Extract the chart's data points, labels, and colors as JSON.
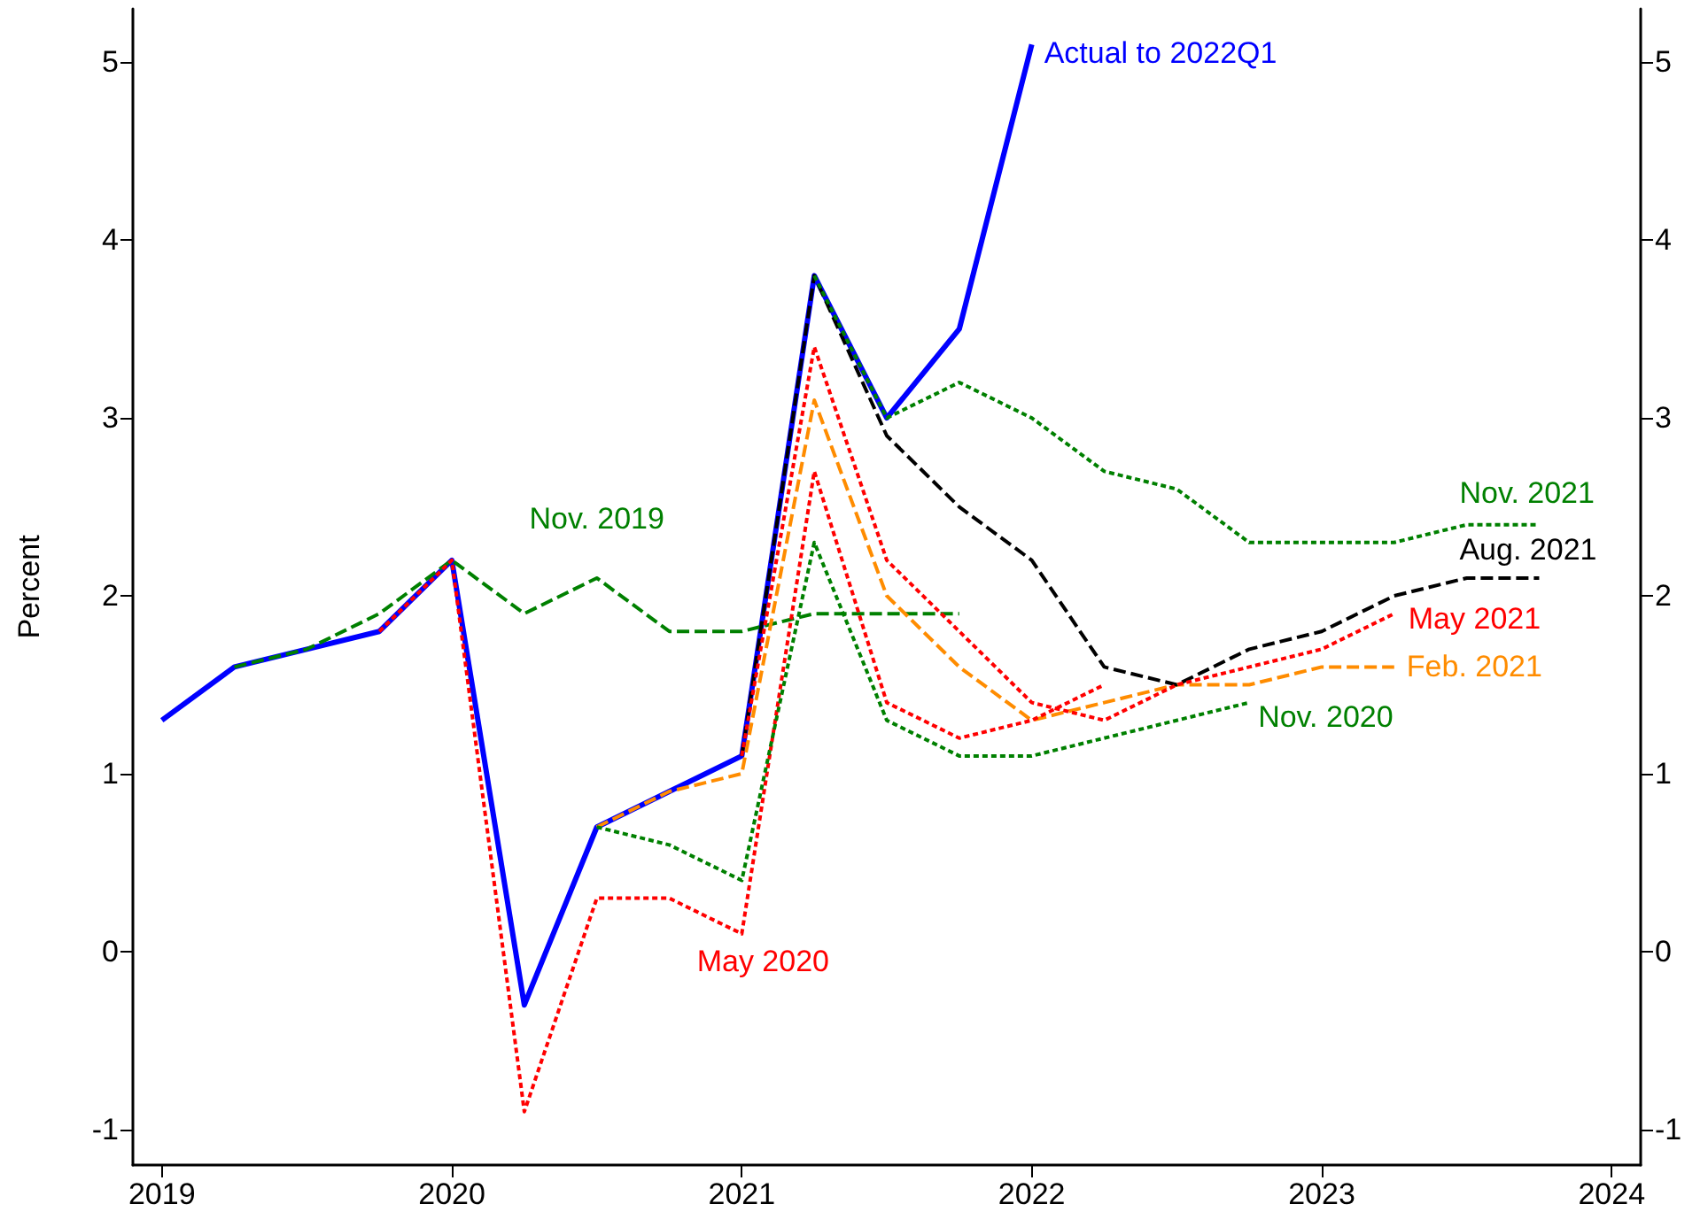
{
  "chart_data": {
    "type": "line",
    "ylabel": "Percent",
    "xlim": [
      2018.9,
      2024.1
    ],
    "xticks": [
      {
        "value": 2019,
        "label": "2019"
      },
      {
        "value": 2020,
        "label": "2020"
      },
      {
        "value": 2021,
        "label": "2021"
      },
      {
        "value": 2022,
        "label": "2022"
      },
      {
        "value": 2023,
        "label": "2023"
      },
      {
        "value": 2024,
        "label": "2024"
      }
    ],
    "ylim": [
      -1.2,
      5.3
    ],
    "yticks": [
      -1,
      0,
      1,
      2,
      3,
      4,
      5
    ],
    "y2lim": [
      -1.2,
      5.3
    ],
    "y2ticks": [
      -1,
      0,
      1,
      2,
      3,
      4,
      5
    ],
    "grid": false,
    "legend": false,
    "marker": "none",
    "series": [
      {
        "name": "Nov. 2019",
        "color": "#008000",
        "line_style": "dashed",
        "x": [
          2019.25,
          2019.5,
          2019.75,
          2020,
          2020.25,
          2020.5,
          2020.75,
          2021,
          2021.25,
          2021.5,
          2021.75
        ],
        "values": [
          1.6,
          1.7,
          1.9,
          2.2,
          1.9,
          2.1,
          1.8,
          1.8,
          1.9,
          1.9,
          1.9
        ]
      },
      {
        "name": "May 2020",
        "color": "#ff0000",
        "line_style": "dotted",
        "x": [
          2019.75,
          2020,
          2020.25,
          2020.5,
          2020.75,
          2021,
          2021.25,
          2021.5,
          2021.75,
          2022,
          2022.25
        ],
        "values": [
          1.8,
          2.2,
          -0.9,
          0.3,
          0.3,
          0.1,
          2.7,
          1.4,
          1.2,
          1.3,
          1.5
        ]
      },
      {
        "name": "Nov. 2020",
        "color": "#008000",
        "line_style": "dotted",
        "x": [
          2020.5,
          2020.75,
          2021,
          2021.25,
          2021.5,
          2021.75,
          2022,
          2022.25,
          2022.5,
          2022.75
        ],
        "values": [
          0.7,
          0.6,
          0.4,
          2.3,
          1.3,
          1.1,
          1.1,
          1.2,
          1.3,
          1.4
        ]
      },
      {
        "name": "Feb. 2021",
        "color": "#ff8c00",
        "line_style": "dashed",
        "x": [
          2020.5,
          2020.75,
          2021,
          2021.25,
          2021.5,
          2021.75,
          2022,
          2022.25,
          2022.5,
          2022.75,
          2023,
          2023.25
        ],
        "values": [
          0.7,
          0.9,
          1.0,
          3.1,
          2.0,
          1.6,
          1.3,
          1.4,
          1.5,
          1.5,
          1.6,
          1.6
        ]
      },
      {
        "name": "May 2021",
        "color": "#ff0000",
        "line_style": "dotted",
        "x": [
          2021,
          2021.25,
          2021.5,
          2021.75,
          2022,
          2022.25,
          2022.5,
          2022.75,
          2023,
          2023.25
        ],
        "values": [
          1.1,
          3.4,
          2.2,
          1.8,
          1.4,
          1.3,
          1.5,
          1.6,
          1.7,
          1.9
        ]
      },
      {
        "name": "Aug. 2021",
        "color": "#000000",
        "line_style": "dashed",
        "x": [
          2021,
          2021.25,
          2021.5,
          2021.75,
          2022,
          2022.25,
          2022.5,
          2022.75,
          2023,
          2023.25,
          2023.5,
          2023.75
        ],
        "values": [
          1.1,
          3.8,
          2.9,
          2.5,
          2.2,
          1.6,
          1.5,
          1.7,
          1.8,
          2.0,
          2.1,
          2.1
        ]
      },
      {
        "name": "Nov. 2021",
        "color": "#008000",
        "line_style": "dotted",
        "x": [
          2021.25,
          2021.5,
          2021.75,
          2022,
          2022.25,
          2022.5,
          2022.75,
          2023,
          2023.25,
          2023.5,
          2023.75
        ],
        "values": [
          3.8,
          3.0,
          3.2,
          3.0,
          2.7,
          2.6,
          2.3,
          2.3,
          2.3,
          2.4,
          2.4
        ]
      },
      {
        "name": "Actual to 2022Q1",
        "color": "#0000ff",
        "line_style": "solid",
        "x": [
          2019,
          2019.25,
          2019.5,
          2019.75,
          2020,
          2020.25,
          2020.5,
          2020.75,
          2021,
          2021.25,
          2021.5,
          2021.75,
          2022
        ],
        "values": [
          1.3,
          1.6,
          1.7,
          1.8,
          2.2,
          -0.3,
          0.7,
          0.9,
          1.1,
          3.8,
          3.0,
          3.5,
          5.1
        ]
      }
    ]
  }
}
